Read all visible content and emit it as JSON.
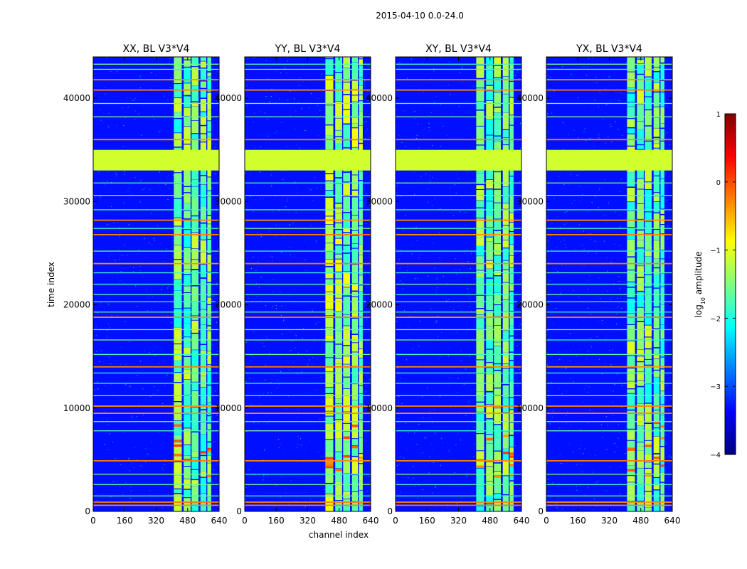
{
  "chart_data": {
    "type": "heatmap",
    "suptitle": "2015-04-10 0.0-24.0",
    "xlabel": "channel index",
    "ylabel": "time index",
    "xlim": [
      0,
      640
    ],
    "ylim": [
      0,
      44000
    ],
    "xticks": [
      0,
      160,
      320,
      480,
      640
    ],
    "yticks": [
      0,
      10000,
      20000,
      30000,
      40000
    ],
    "panels": [
      {
        "title": "XX, BL V3*V4",
        "pol": "XX"
      },
      {
        "title": "YY, BL V3*V4",
        "pol": "YY"
      },
      {
        "title": "XY, BL V3*V4",
        "pol": "XY"
      },
      {
        "title": "YX, BL V3*V4",
        "pol": "YX"
      }
    ],
    "colorbar": {
      "label_prefix": "log",
      "label_sub": "10",
      "label_suffix": " amplitude",
      "range": [
        -4,
        1
      ],
      "ticks": [
        "1",
        "0",
        "−1",
        "−2",
        "−3",
        "−4"
      ],
      "colormap": "jet",
      "colors": [
        "#00007f",
        "#0000ff",
        "#007fff",
        "#00ffff",
        "#7fff7f",
        "#ffff00",
        "#ff7f00",
        "#ff0000",
        "#7f0000"
      ]
    },
    "features": {
      "background_log_amp": -3.3,
      "rfi_channel_range": [
        410,
        600
      ],
      "rfi_channel_strips": [
        [
          410,
          450
        ],
        [
          460,
          495
        ],
        [
          500,
          535
        ],
        [
          545,
          575
        ],
        [
          580,
          600
        ]
      ],
      "flagged_time_block": [
        33000,
        35000
      ],
      "flagged_log_amp": -1.1,
      "bright_time_rows": [
        600,
        900,
        4900,
        9500,
        10200,
        14000,
        18800,
        24000,
        26800,
        28200,
        36000,
        40800,
        41800
      ],
      "faint_time_rows": [
        1500,
        2600,
        3600,
        7800,
        8700,
        11200,
        12400,
        13400,
        15200,
        16600,
        17600,
        19300,
        20300,
        21000,
        22000,
        23100,
        25200,
        27400,
        29200,
        30600,
        31800,
        38200,
        39500,
        42800,
        43300
      ]
    }
  }
}
